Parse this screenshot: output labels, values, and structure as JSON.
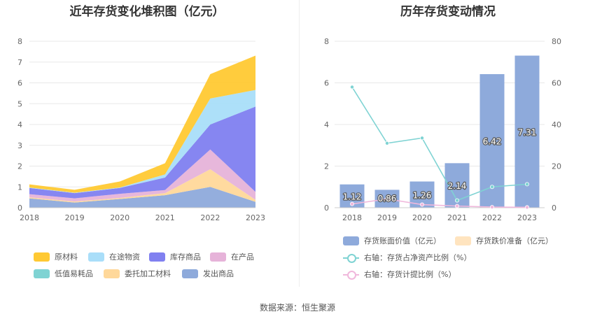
{
  "source_text": "数据来源：恒生聚源",
  "chart_data": [
    {
      "type": "area",
      "stacked": true,
      "title": "近年存货变化堆积图（亿元）",
      "categories": [
        "2018",
        "2019",
        "2020",
        "2021",
        "2022",
        "2023"
      ],
      "ylim": [
        0,
        8
      ],
      "yticks": [
        "0",
        "1",
        "2",
        "3",
        "4",
        "5",
        "6",
        "7",
        "8"
      ],
      "grid": true,
      "legend_position": "bottom",
      "series": [
        {
          "name": "发出商品",
          "color": "#8eaadb",
          "values": [
            0.45,
            0.25,
            0.42,
            0.6,
            1.0,
            0.28
          ]
        },
        {
          "name": "委托加工材料",
          "color": "#ffd89a",
          "values": [
            0.05,
            0.05,
            0.05,
            0.1,
            0.85,
            0.1
          ]
        },
        {
          "name": "低值易耗品",
          "color": "#7fd3d3",
          "values": [
            0.0,
            0.0,
            0.0,
            0.0,
            0.0,
            0.0
          ]
        },
        {
          "name": "在产品",
          "color": "#e6b3d9",
          "values": [
            0.15,
            0.15,
            0.2,
            0.15,
            0.95,
            0.38
          ]
        },
        {
          "name": "库存商品",
          "color": "#8080f0",
          "values": [
            0.3,
            0.25,
            0.28,
            0.6,
            1.2,
            4.1
          ]
        },
        {
          "name": "在途物资",
          "color": "#a9def9",
          "values": [
            0.02,
            0.02,
            0.02,
            0.15,
            1.25,
            0.8
          ]
        },
        {
          "name": "原材料",
          "color": "#ffc933",
          "values": [
            0.15,
            0.14,
            0.29,
            0.54,
            1.17,
            1.65
          ]
        }
      ],
      "legend_order": [
        "原材料",
        "在途物资",
        "库存商品",
        "在产品",
        "低值易耗品",
        "委托加工材料",
        "发出商品"
      ]
    },
    {
      "type": "bar",
      "title": "历年存货变动情况",
      "categories": [
        "2018",
        "2019",
        "2020",
        "2021",
        "2022",
        "2023"
      ],
      "ylim": [
        0,
        8
      ],
      "yticks": [
        "0",
        "2",
        "4",
        "6",
        "8"
      ],
      "y2lim": [
        0,
        80
      ],
      "y2ticks": [
        "0",
        "20",
        "40",
        "60",
        "80"
      ],
      "grid": true,
      "legend_position": "bottom",
      "series": [
        {
          "name": "存货账面价值（亿元）",
          "kind": "bar",
          "axis": "left",
          "color": "#8eaadb",
          "values": [
            1.12,
            0.86,
            1.26,
            2.14,
            6.42,
            7.31
          ],
          "labels": [
            "1.12",
            "0.86",
            "1.26",
            "2.14",
            "6.42",
            "7.31"
          ]
        },
        {
          "name": "存货跌价准备（亿元）",
          "kind": "bar",
          "axis": "left",
          "color": "#ffe4bf",
          "values": [
            0,
            0,
            0,
            0,
            0,
            0
          ]
        },
        {
          "name": "右轴：存货占净资产比例（%）",
          "kind": "line",
          "axis": "right",
          "color": "#7fd3d3",
          "values": [
            58.0,
            31.0,
            33.5,
            3.5,
            10.0,
            11.3
          ]
        },
        {
          "name": "右轴：存货计提比例（%）",
          "kind": "line",
          "axis": "right",
          "color": "#f0b8dc",
          "values": [
            1.8,
            4.2,
            1.5,
            0.8,
            0.3,
            0.2
          ]
        }
      ]
    }
  ]
}
